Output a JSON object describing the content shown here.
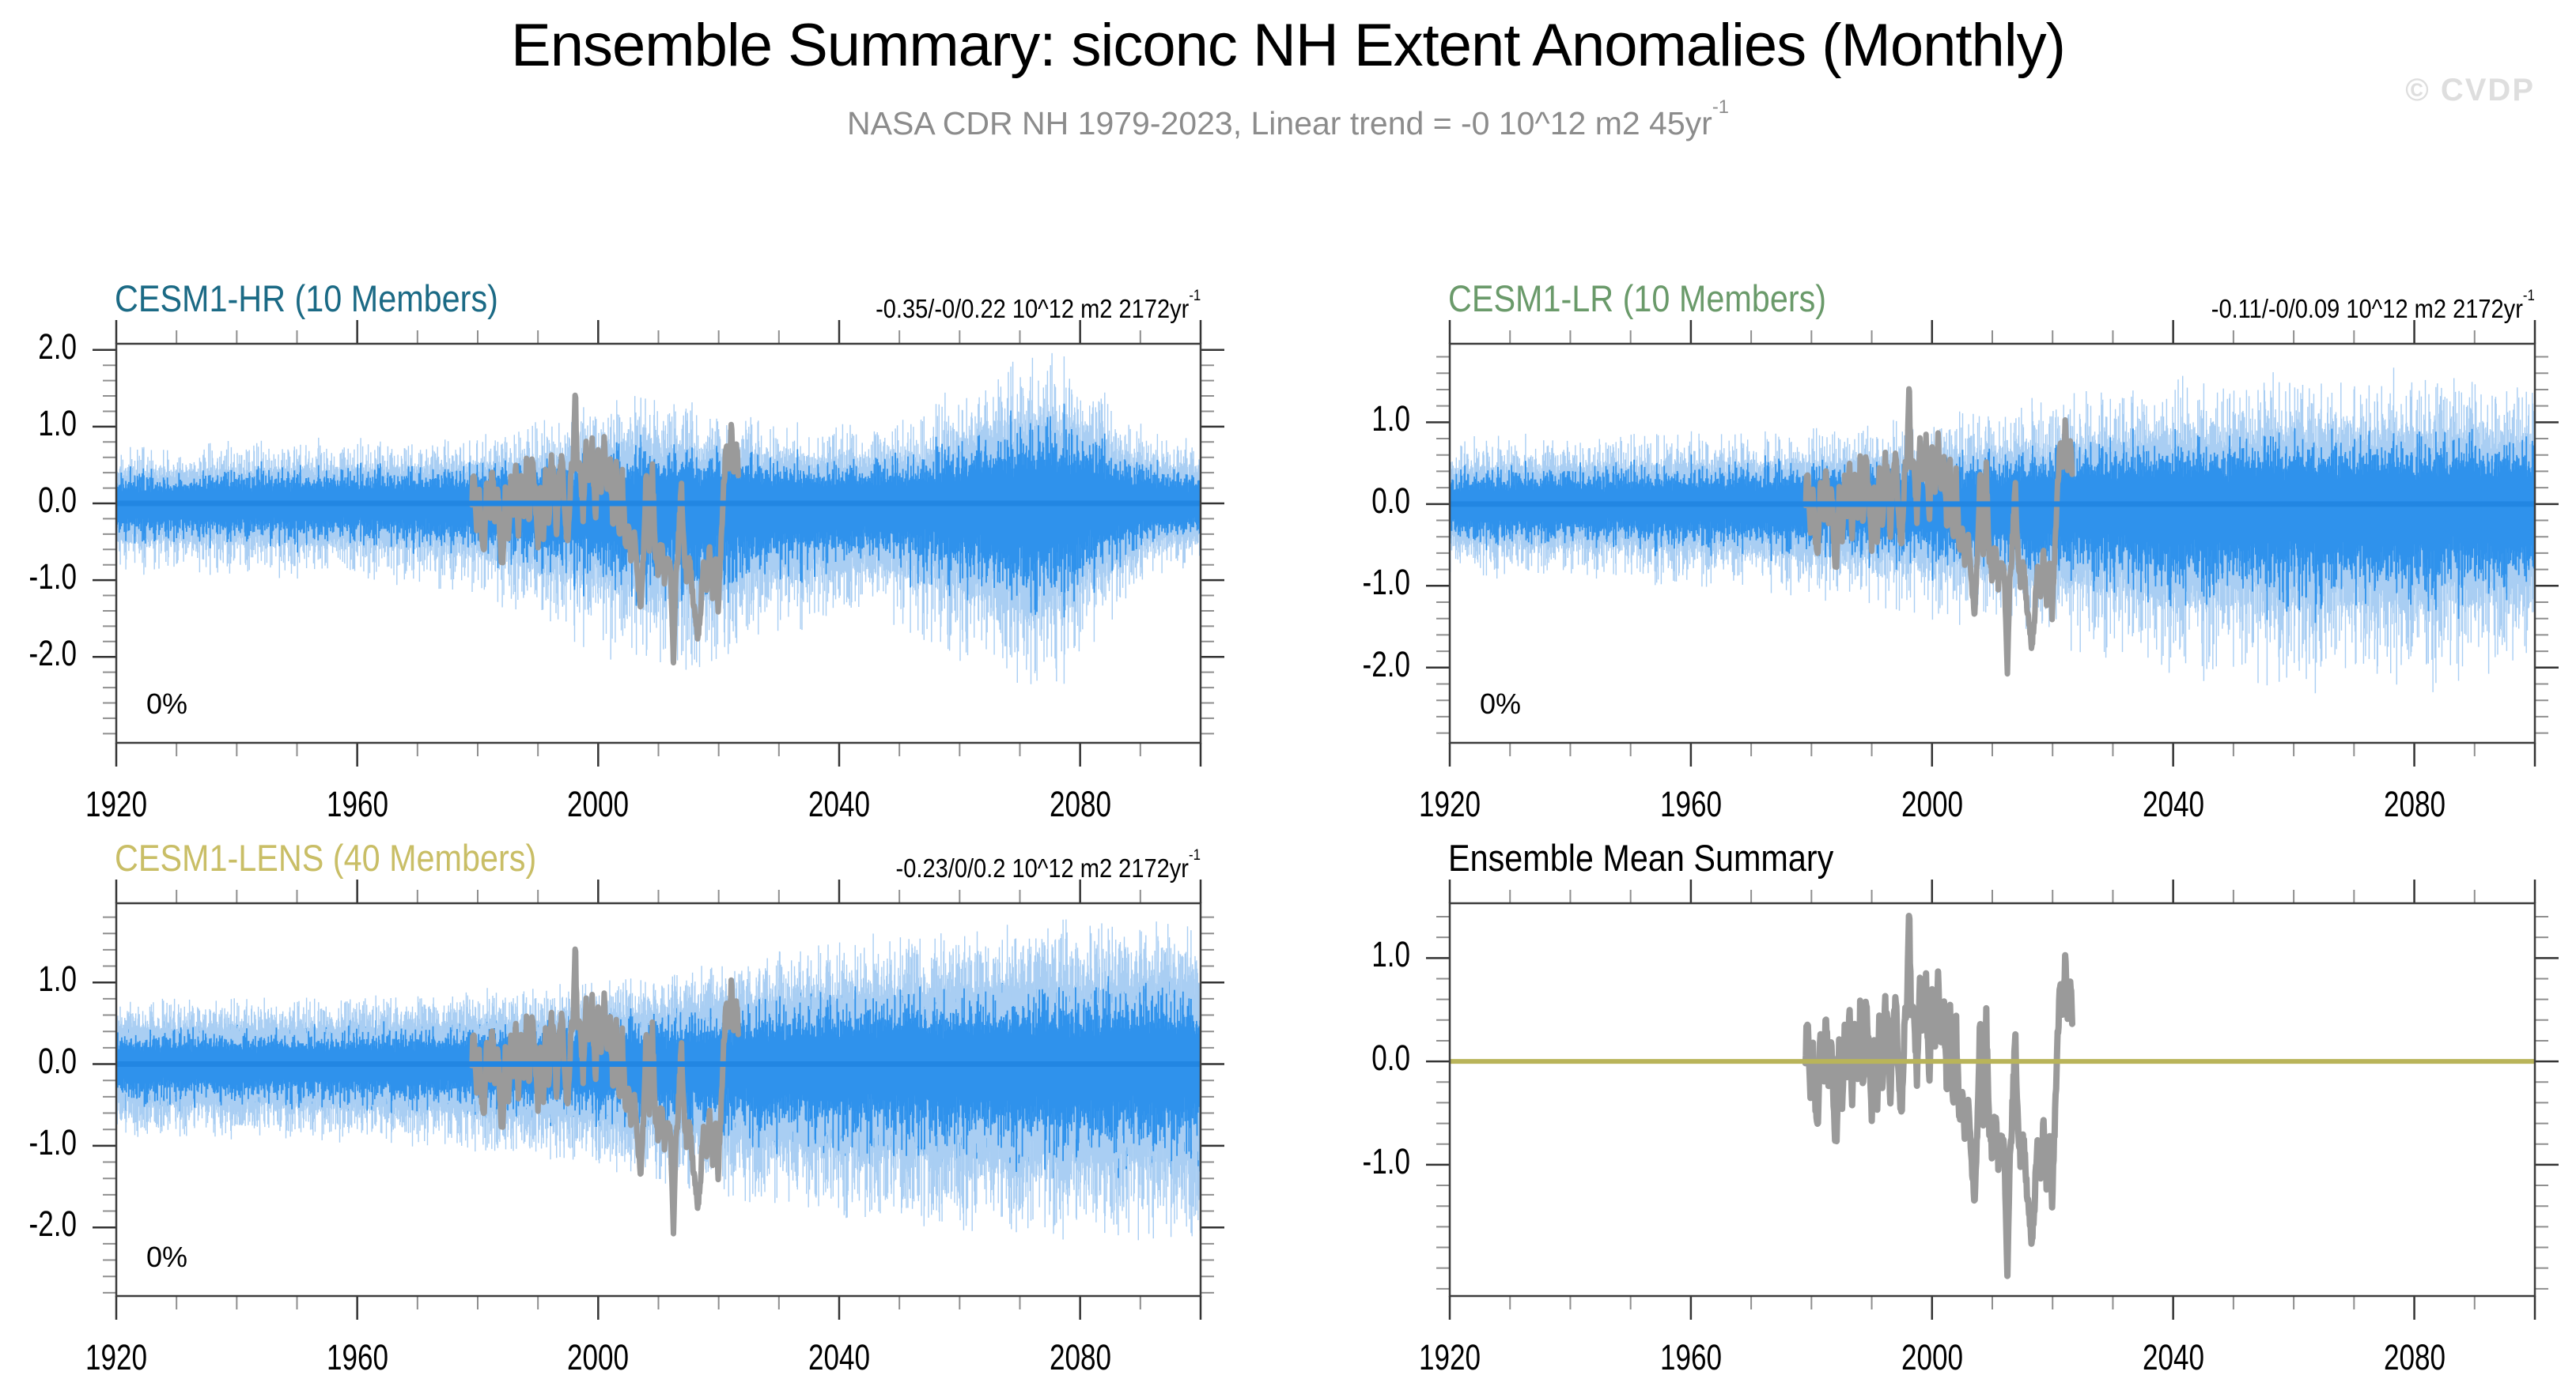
{
  "page": {
    "title": "Ensemble Summary: siconc NH Extent Anomalies (Monthly)",
    "subtitle": {
      "text": "NASA CDR NH 1979-2023, Linear trend = -0 10^12 m2 45yr",
      "sup": "-1"
    },
    "watermark": "© CVDP"
  },
  "chart_data": {
    "type": "line",
    "subtype": "ensemble-monthly-anomaly-timeseries",
    "y_unit": "10^12 m2",
    "x": {
      "unit": "year",
      "range": [
        1920,
        2100
      ],
      "major_tick_values": [
        1920,
        1960,
        2000,
        2040,
        2080
      ],
      "labels": [
        "1920",
        "1960",
        "2000",
        "2040",
        "2080"
      ],
      "minor_step": 10
    },
    "series_colors": {
      "member_light": "#a9cef3",
      "member_mid": "#2f92ec",
      "ensemble_mean_blue": "#2286e2",
      "ensemble_mean_khaki": "#b9b45a",
      "observations_gray": "#9a9a9a"
    },
    "observations": {
      "name": "NASA CDR NH observations 1979-2023",
      "color": "#9a9a9a",
      "jitter": 0.12,
      "seed": 7,
      "points": [
        [
          1979.0,
          0.1
        ],
        [
          1979.4,
          0.4
        ],
        [
          1979.8,
          -0.35
        ],
        [
          1980.2,
          0.3
        ],
        [
          1980.6,
          -0.4
        ],
        [
          1981.1,
          -0.55
        ],
        [
          1981.5,
          0.25
        ],
        [
          1982.0,
          -0.25
        ],
        [
          1982.4,
          0.55
        ],
        [
          1982.9,
          -0.35
        ],
        [
          1983.3,
          0.3
        ],
        [
          1983.8,
          -0.6
        ],
        [
          1984.2,
          -0.8
        ],
        [
          1984.6,
          0.25
        ],
        [
          1985.1,
          -0.6
        ],
        [
          1985.5,
          0.35
        ],
        [
          1985.9,
          -0.3
        ],
        [
          1986.3,
          0.5
        ],
        [
          1986.8,
          -0.4
        ],
        [
          1987.2,
          0.4
        ],
        [
          1987.7,
          -0.25
        ],
        [
          1988.1,
          0.5
        ],
        [
          1988.6,
          -0.3
        ],
        [
          1989.0,
          0.55
        ],
        [
          1989.5,
          0.15
        ],
        [
          1990.0,
          -0.5
        ],
        [
          1990.4,
          0.35
        ],
        [
          1990.9,
          -0.4
        ],
        [
          1991.3,
          0.5
        ],
        [
          1991.8,
          -0.35
        ],
        [
          1992.2,
          0.6
        ],
        [
          1992.7,
          0.25
        ],
        [
          1993.1,
          -0.4
        ],
        [
          1993.6,
          0.45
        ],
        [
          1994.0,
          0.55
        ],
        [
          1994.5,
          -0.25
        ],
        [
          1995.0,
          -0.5
        ],
        [
          1995.4,
          0.3
        ],
        [
          1995.9,
          0.6
        ],
        [
          1996.2,
          1.42
        ],
        [
          1996.5,
          0.5
        ],
        [
          1997.0,
          0.45
        ],
        [
          1997.5,
          -0.15
        ],
        [
          1998.0,
          0.7
        ],
        [
          1998.5,
          0.25
        ],
        [
          1999.0,
          0.75
        ],
        [
          1999.5,
          -0.2
        ],
        [
          2000.0,
          0.6
        ],
        [
          2000.5,
          0.25
        ],
        [
          2001.0,
          0.8
        ],
        [
          2001.5,
          0.2
        ],
        [
          2002.0,
          0.5
        ],
        [
          2002.5,
          -0.35
        ],
        [
          2003.0,
          0.5
        ],
        [
          2003.5,
          -0.45
        ],
        [
          2004.0,
          0.35
        ],
        [
          2004.5,
          -0.55
        ],
        [
          2005.0,
          -0.35
        ],
        [
          2005.5,
          -0.7
        ],
        [
          2006.0,
          -0.45
        ],
        [
          2006.5,
          -0.95
        ],
        [
          2007.1,
          -1.35
        ],
        [
          2007.6,
          -0.5
        ],
        [
          2008.0,
          0.45
        ],
        [
          2008.5,
          -0.6
        ],
        [
          2009.0,
          0.4
        ],
        [
          2009.5,
          -0.65
        ],
        [
          2010.0,
          -0.9
        ],
        [
          2010.5,
          -0.45
        ],
        [
          2011.0,
          -1.0
        ],
        [
          2011.5,
          -0.7
        ],
        [
          2012.0,
          -0.9
        ],
        [
          2012.5,
          -2.1
        ],
        [
          2012.9,
          -1.0
        ],
        [
          2013.3,
          -0.55
        ],
        [
          2013.8,
          0.25
        ],
        [
          2014.2,
          -0.55
        ],
        [
          2014.7,
          -0.95
        ],
        [
          2015.1,
          -0.75
        ],
        [
          2015.6,
          -1.15
        ],
        [
          2016.1,
          -1.5
        ],
        [
          2016.6,
          -1.7
        ],
        [
          2017.0,
          -1.35
        ],
        [
          2017.5,
          -0.85
        ],
        [
          2018.0,
          -1.05
        ],
        [
          2018.5,
          -0.55
        ],
        [
          2019.0,
          -1.25
        ],
        [
          2019.5,
          -0.8
        ],
        [
          2019.9,
          -1.4
        ],
        [
          2020.4,
          -0.5
        ],
        [
          2020.9,
          0.3
        ],
        [
          2021.3,
          0.9
        ],
        [
          2021.7,
          0.35
        ],
        [
          2022.1,
          0.95
        ],
        [
          2022.5,
          0.45
        ],
        [
          2022.9,
          0.85
        ],
        [
          2023.2,
          0.4
        ]
      ]
    },
    "panels": [
      {
        "id": "cesm1-hr",
        "title": "CESM1-HR (10 Members)",
        "title_color": "#1b6a85",
        "members": 10,
        "trend": {
          "text": "-0.35/-0/0.22 10^12 m2 2172yr",
          "sup": "-1"
        },
        "pct_label": "0%",
        "ylim": [
          -3.12,
          2.08
        ],
        "ytick_values": [
          2.0,
          1.0,
          0.0,
          -1.0,
          -2.0
        ],
        "ytick_labels": [
          "2.0",
          "1.0",
          "0.0",
          "-1.0",
          "-2.0"
        ],
        "show_members": true,
        "show_obs": true,
        "mean_value": 0,
        "mean_color": "#2286e2",
        "seed": 11,
        "density": 1,
        "envelope_top": [
          [
            1920,
            0.8
          ],
          [
            1950,
            0.85
          ],
          [
            1970,
            0.9
          ],
          [
            1985,
            1.0
          ],
          [
            1995,
            1.2
          ],
          [
            2005,
            1.5
          ],
          [
            2015,
            1.4
          ],
          [
            2025,
            1.2
          ],
          [
            2035,
            1.1
          ],
          [
            2045,
            1.1
          ],
          [
            2055,
            1.3
          ],
          [
            2065,
            1.9
          ],
          [
            2073,
            2.1
          ],
          [
            2078,
            2.1
          ],
          [
            2085,
            1.4
          ],
          [
            2092,
            0.95
          ],
          [
            2100,
            0.9
          ]
        ],
        "envelope_bot": [
          [
            1920,
            0.95
          ],
          [
            1950,
            1.0
          ],
          [
            1970,
            1.1
          ],
          [
            1985,
            1.4
          ],
          [
            1995,
            1.8
          ],
          [
            2005,
            2.2
          ],
          [
            2015,
            2.4
          ],
          [
            2025,
            2.0
          ],
          [
            2035,
            1.7
          ],
          [
            2045,
            1.6
          ],
          [
            2055,
            1.9
          ],
          [
            2065,
            2.4
          ],
          [
            2073,
            2.7
          ],
          [
            2078,
            2.6
          ],
          [
            2085,
            1.6
          ],
          [
            2092,
            1.0
          ],
          [
            2100,
            0.95
          ]
        ]
      },
      {
        "id": "cesm1-lr",
        "title": "CESM1-LR (10 Members)",
        "title_color": "#6a9a6a",
        "members": 10,
        "trend": {
          "text": "-0.11/-0/0.09 10^12 m2 2172yr",
          "sup": "-1"
        },
        "pct_label": "0%",
        "ylim": [
          -2.92,
          1.96
        ],
        "ytick_values": [
          1.0,
          0.0,
          -1.0,
          -2.0
        ],
        "ytick_labels": [
          "1.0",
          "0.0",
          "-1.0",
          "-2.0"
        ],
        "show_members": true,
        "show_obs": true,
        "mean_value": 0,
        "mean_color": "#2286e2",
        "seed": 22,
        "density": 1,
        "envelope_top": [
          [
            1920,
            0.85
          ],
          [
            1950,
            0.9
          ],
          [
            1975,
            0.95
          ],
          [
            1995,
            1.05
          ],
          [
            2010,
            1.2
          ],
          [
            2025,
            1.45
          ],
          [
            2040,
            1.6
          ],
          [
            2055,
            1.7
          ],
          [
            2070,
            1.7
          ],
          [
            2085,
            1.65
          ],
          [
            2100,
            1.6
          ]
        ],
        "envelope_bot": [
          [
            1920,
            0.95
          ],
          [
            1950,
            1.0
          ],
          [
            1975,
            1.15
          ],
          [
            1995,
            1.35
          ],
          [
            2010,
            1.6
          ],
          [
            2025,
            1.9
          ],
          [
            2040,
            2.2
          ],
          [
            2055,
            2.4
          ],
          [
            2070,
            2.4
          ],
          [
            2085,
            2.3
          ],
          [
            2100,
            2.2
          ]
        ]
      },
      {
        "id": "cesm1-lens",
        "title": "CESM1-LENS (40 Members)",
        "title_color": "#c9be66",
        "members": 40,
        "trend": {
          "text": "-0.23/0/0.2 10^12 m2 2172yr",
          "sup": "-1"
        },
        "pct_label": "0%",
        "ylim": [
          -2.84,
          1.97
        ],
        "ytick_values": [
          1.0,
          0.0,
          -1.0,
          -2.0
        ],
        "ytick_labels": [
          "1.0",
          "0.0",
          "-1.0",
          "-2.0"
        ],
        "show_members": true,
        "show_obs": true,
        "mean_value": 0,
        "mean_color": "#2286e2",
        "seed": 33,
        "density": 2,
        "envelope_top": [
          [
            1920,
            0.8
          ],
          [
            1950,
            0.82
          ],
          [
            1975,
            0.9
          ],
          [
            1995,
            1.0
          ],
          [
            2010,
            1.15
          ],
          [
            2025,
            1.35
          ],
          [
            2040,
            1.55
          ],
          [
            2055,
            1.7
          ],
          [
            2070,
            1.8
          ],
          [
            2085,
            1.8
          ],
          [
            2100,
            1.8
          ]
        ],
        "envelope_bot": [
          [
            1920,
            0.9
          ],
          [
            1950,
            0.95
          ],
          [
            1975,
            1.05
          ],
          [
            1995,
            1.25
          ],
          [
            2010,
            1.5
          ],
          [
            2025,
            1.75
          ],
          [
            2040,
            1.95
          ],
          [
            2055,
            2.1
          ],
          [
            2070,
            2.2
          ],
          [
            2085,
            2.2
          ],
          [
            2100,
            2.2
          ]
        ]
      },
      {
        "id": "ensemble-mean",
        "title": "Ensemble Mean Summary",
        "title_color": "#000000",
        "members": null,
        "trend": null,
        "pct_label": null,
        "ylim": [
          -2.27,
          1.53
        ],
        "ytick_values": [
          1.0,
          0.0,
          -1.0
        ],
        "ytick_labels": [
          "1.0",
          "0.0",
          "-1.0"
        ],
        "show_members": false,
        "show_obs": true,
        "mean_value": 0,
        "mean_color": "#b9b45a",
        "seed": 44,
        "density": 1,
        "envelope_top": null,
        "envelope_bot": null
      }
    ]
  }
}
